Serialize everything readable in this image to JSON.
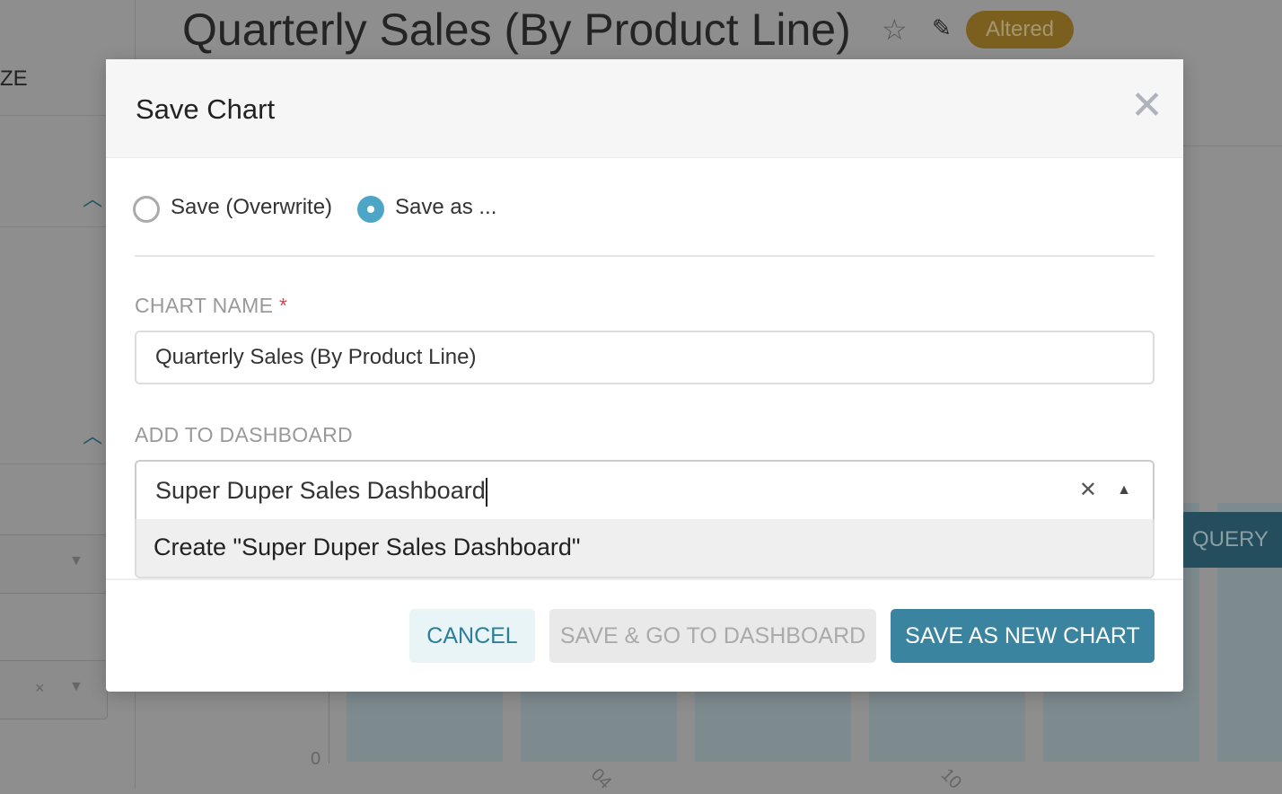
{
  "background": {
    "chart_title": "Quarterly Sales (By Product Line)",
    "status_badge": "Altered",
    "sidebar_fragment": "ZE",
    "run_query_fragment": "QUERY",
    "y_axis_zero": "0",
    "x_tick_1": "04",
    "x_tick_2": "10"
  },
  "modal": {
    "title": "Save Chart",
    "radio_overwrite": "Save (Overwrite)",
    "radio_save_as": "Save as ...",
    "selected_mode": "save_as",
    "chart_name_label": "CHART NAME",
    "required_mark": "*",
    "chart_name_value": "Quarterly Sales (By Product Line)",
    "dashboard_label": "ADD TO DASHBOARD",
    "dashboard_value": "Super Duper Sales Dashboard",
    "dashboard_option": "Create \"Super Duper Sales Dashboard\"",
    "cancel": "CANCEL",
    "save_go": "SAVE & GO TO DASHBOARD",
    "save_new": "SAVE AS NEW CHART"
  },
  "colors": {
    "primary": "#3a84a0",
    "badge": "#7a5f1e",
    "radio_selected": "#4ea6c6"
  }
}
